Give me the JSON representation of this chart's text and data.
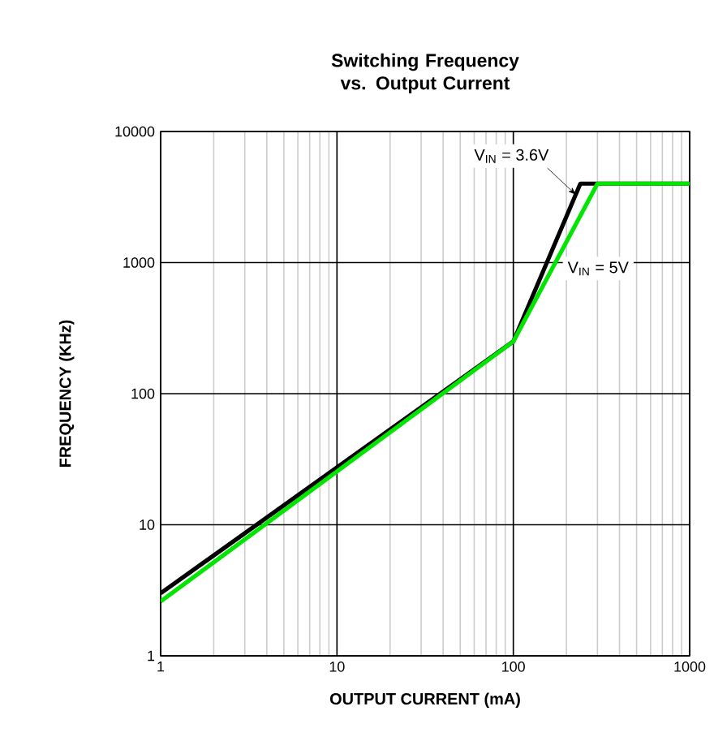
{
  "chart_data": {
    "type": "line",
    "title": "Switching Frequency vs. Output Current",
    "xlabel": "OUTPUT CURRENT (mA)",
    "ylabel": "FREQUENCY (KHz)",
    "log": "xy",
    "grid": true,
    "legend": false,
    "marker": "none",
    "line_style": "solid",
    "xlim": [
      1,
      1000
    ],
    "ylim": [
      1,
      10000
    ],
    "xticks": [
      1,
      10,
      100,
      1000
    ],
    "yticks": [
      1,
      10,
      100,
      1000,
      10000
    ],
    "series": [
      {
        "name": "V$_{IN}$ = 3.6V",
        "color": "#000000",
        "x": [
          1,
          100,
          240,
          1000
        ],
        "values": [
          3,
          250,
          4000,
          4000
        ]
      },
      {
        "name": "V$_{IN}$ = 5V",
        "color": "#00e600",
        "x": [
          1,
          100,
          300,
          1000
        ],
        "values": [
          2.6,
          250,
          4000,
          4000
        ]
      }
    ]
  }
}
